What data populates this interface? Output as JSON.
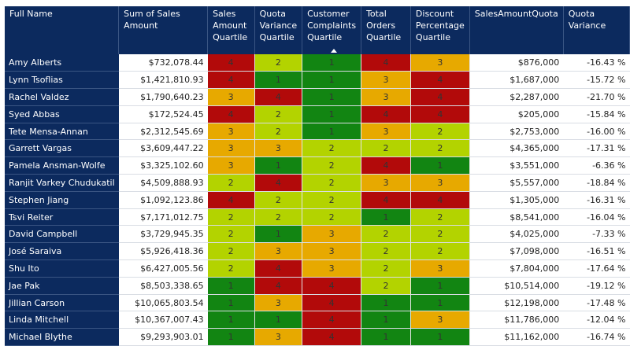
{
  "table": {
    "columns": [
      {
        "key": "name",
        "label": "Full Name"
      },
      {
        "key": "sales",
        "label": "Sum of Sales Amount"
      },
      {
        "key": "saq",
        "label": "Sales Amount Quartile"
      },
      {
        "key": "qvq",
        "label": "Quota Variance Quartile"
      },
      {
        "key": "ccq",
        "label": "Customer Complaints Quartile",
        "sorted": true
      },
      {
        "key": "toq",
        "label": "Total Orders Quartile"
      },
      {
        "key": "dpq",
        "label": "Discount Percentage Quartile"
      },
      {
        "key": "quota",
        "label": "SalesAmountQuota"
      },
      {
        "key": "variance",
        "label": "Quota Variance"
      }
    ],
    "quartile_colors": {
      "1": "#128512",
      "2": "#b3d300",
      "3": "#e7a900",
      "4": "#b20a0a"
    },
    "rows": [
      {
        "name": "Amy Alberts",
        "sales": "$732,078.44",
        "saq": "4",
        "qvq": "2",
        "ccq": "1",
        "toq": "4",
        "dpq": "3",
        "quota": "$876,000",
        "variance": "-16.43 %"
      },
      {
        "name": "Lynn Tsoflias",
        "sales": "$1,421,810.93",
        "saq": "4",
        "qvq": "1",
        "ccq": "1",
        "toq": "3",
        "dpq": "4",
        "quota": "$1,687,000",
        "variance": "-15.72 %"
      },
      {
        "name": "Rachel Valdez",
        "sales": "$1,790,640.23",
        "saq": "3",
        "qvq": "4",
        "ccq": "1",
        "toq": "3",
        "dpq": "4",
        "quota": "$2,287,000",
        "variance": "-21.70 %"
      },
      {
        "name": "Syed Abbas",
        "sales": "$172,524.45",
        "saq": "4",
        "qvq": "2",
        "ccq": "1",
        "toq": "4",
        "dpq": "4",
        "quota": "$205,000",
        "variance": "-15.84 %"
      },
      {
        "name": "Tete Mensa-Annan",
        "sales": "$2,312,545.69",
        "saq": "3",
        "qvq": "2",
        "ccq": "1",
        "toq": "3",
        "dpq": "2",
        "quota": "$2,753,000",
        "variance": "-16.00 %"
      },
      {
        "name": "Garrett Vargas",
        "sales": "$3,609,447.22",
        "saq": "3",
        "qvq": "3",
        "ccq": "2",
        "toq": "2",
        "dpq": "2",
        "quota": "$4,365,000",
        "variance": "-17.31 %"
      },
      {
        "name": "Pamela Ansman-Wolfe",
        "sales": "$3,325,102.60",
        "saq": "3",
        "qvq": "1",
        "ccq": "2",
        "toq": "4",
        "dpq": "1",
        "quota": "$3,551,000",
        "variance": "-6.36 %"
      },
      {
        "name": "Ranjit Varkey Chudukatil",
        "sales": "$4,509,888.93",
        "saq": "2",
        "qvq": "4",
        "ccq": "2",
        "toq": "3",
        "dpq": "3",
        "quota": "$5,557,000",
        "variance": "-18.84 %"
      },
      {
        "name": "Stephen Jiang",
        "sales": "$1,092,123.86",
        "saq": "4",
        "qvq": "2",
        "ccq": "2",
        "toq": "4",
        "dpq": "4",
        "quota": "$1,305,000",
        "variance": "-16.31 %"
      },
      {
        "name": "Tsvi Reiter",
        "sales": "$7,171,012.75",
        "saq": "2",
        "qvq": "2",
        "ccq": "2",
        "toq": "1",
        "dpq": "2",
        "quota": "$8,541,000",
        "variance": "-16.04 %"
      },
      {
        "name": "David Campbell",
        "sales": "$3,729,945.35",
        "saq": "2",
        "qvq": "1",
        "ccq": "3",
        "toq": "2",
        "dpq": "2",
        "quota": "$4,025,000",
        "variance": "-7.33 %"
      },
      {
        "name": "José Saraiva",
        "sales": "$5,926,418.36",
        "saq": "2",
        "qvq": "3",
        "ccq": "3",
        "toq": "2",
        "dpq": "2",
        "quota": "$7,098,000",
        "variance": "-16.51 %"
      },
      {
        "name": "Shu Ito",
        "sales": "$6,427,005.56",
        "saq": "2",
        "qvq": "4",
        "ccq": "3",
        "toq": "2",
        "dpq": "3",
        "quota": "$7,804,000",
        "variance": "-17.64 %"
      },
      {
        "name": "Jae Pak",
        "sales": "$8,503,338.65",
        "saq": "1",
        "qvq": "4",
        "ccq": "4",
        "toq": "2",
        "dpq": "1",
        "quota": "$10,514,000",
        "variance": "-19.12 %"
      },
      {
        "name": "Jillian Carson",
        "sales": "$10,065,803.54",
        "saq": "1",
        "qvq": "3",
        "ccq": "4",
        "toq": "1",
        "dpq": "1",
        "quota": "$12,198,000",
        "variance": "-17.48 %"
      },
      {
        "name": "Linda Mitchell",
        "sales": "$10,367,007.43",
        "saq": "1",
        "qvq": "1",
        "ccq": "4",
        "toq": "1",
        "dpq": "3",
        "quota": "$11,786,000",
        "variance": "-12.04 %"
      },
      {
        "name": "Michael Blythe",
        "sales": "$9,293,903.01",
        "saq": "1",
        "qvq": "3",
        "ccq": "4",
        "toq": "1",
        "dpq": "1",
        "quota": "$11,162,000",
        "variance": "-16.74 %"
      }
    ]
  }
}
